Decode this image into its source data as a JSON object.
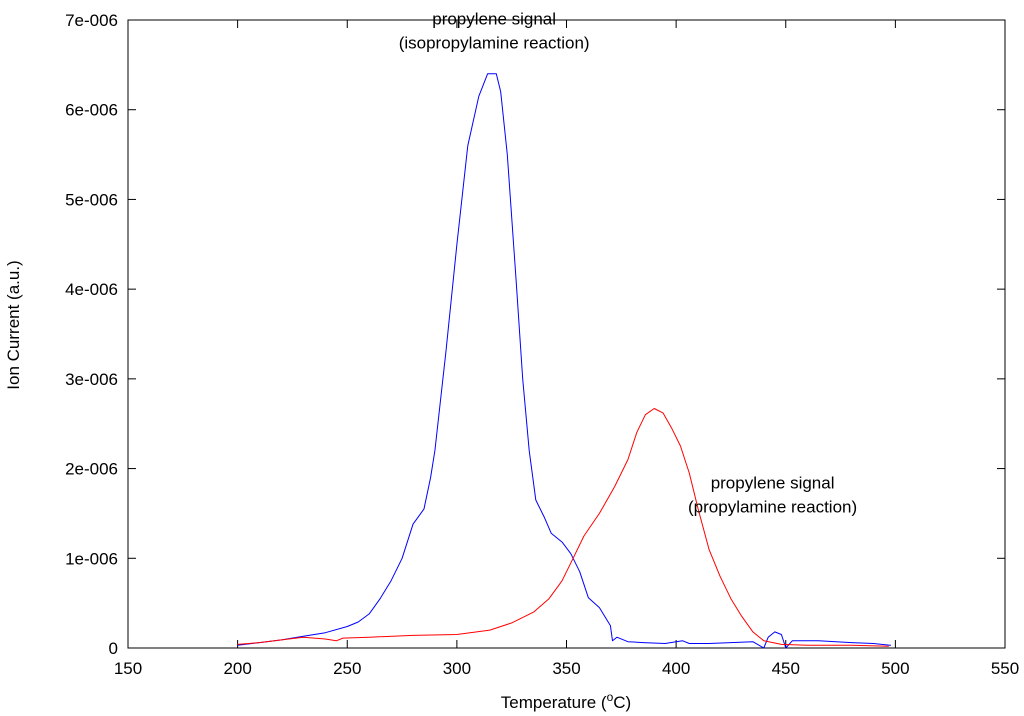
{
  "chart_data": {
    "type": "line",
    "xlabel_prefix": "Temperature (",
    "xlabel_sup": "o",
    "xlabel_suffix": "C)",
    "ylabel": "Ion Current (a.u.)",
    "xlim": [
      150,
      550
    ],
    "ylim": [
      0,
      7e-06
    ],
    "x_ticks": [
      {
        "value": 150,
        "label": "150"
      },
      {
        "value": 200,
        "label": "200"
      },
      {
        "value": 250,
        "label": "250"
      },
      {
        "value": 300,
        "label": "300"
      },
      {
        "value": 350,
        "label": "350"
      },
      {
        "value": 400,
        "label": "400"
      },
      {
        "value": 450,
        "label": "450"
      },
      {
        "value": 500,
        "label": "500"
      },
      {
        "value": 550,
        "label": "550"
      }
    ],
    "y_ticks": [
      {
        "value": 0,
        "label": "0"
      },
      {
        "value": 1e-06,
        "label": "1e-006"
      },
      {
        "value": 2e-06,
        "label": "2e-006"
      },
      {
        "value": 3e-06,
        "label": "3e-006"
      },
      {
        "value": 4e-06,
        "label": "4e-006"
      },
      {
        "value": 5e-06,
        "label": "5e-006"
      },
      {
        "value": 6e-06,
        "label": "6e-006"
      },
      {
        "value": 7e-06,
        "label": "7e-006"
      }
    ],
    "grid": false,
    "series": [
      {
        "color": "#0000ff",
        "points": [
          [
            200,
            3e-08
          ],
          [
            210,
            6e-08
          ],
          [
            220,
            9e-08
          ],
          [
            230,
            1.3e-07
          ],
          [
            240,
            1.7e-07
          ],
          [
            250,
            2.4e-07
          ],
          [
            255,
            2.9e-07
          ],
          [
            260,
            3.8e-07
          ],
          [
            265,
            5.5e-07
          ],
          [
            270,
            7.5e-07
          ],
          [
            275,
            1e-06
          ],
          [
            280,
            1.38e-06
          ],
          [
            285,
            1.55e-06
          ],
          [
            288,
            1.9e-06
          ],
          [
            290,
            2.2e-06
          ],
          [
            295,
            3.3e-06
          ],
          [
            300,
            4.5e-06
          ],
          [
            305,
            5.6e-06
          ],
          [
            310,
            6.15e-06
          ],
          [
            314,
            6.4e-06
          ],
          [
            318,
            6.4e-06
          ],
          [
            320,
            6.2e-06
          ],
          [
            323,
            5.5e-06
          ],
          [
            327,
            4.1e-06
          ],
          [
            330,
            3e-06
          ],
          [
            333,
            2.2e-06
          ],
          [
            336,
            1.65e-06
          ],
          [
            340,
            1.45e-06
          ],
          [
            343,
            1.28e-06
          ],
          [
            348,
            1.18e-06
          ],
          [
            352,
            1.05e-06
          ],
          [
            356,
            8.5e-07
          ],
          [
            360,
            5.6e-07
          ],
          [
            365,
            4.5e-07
          ],
          [
            370,
            2.5e-07
          ],
          [
            371,
            8e-08
          ],
          [
            373,
            1.2e-07
          ],
          [
            378,
            7e-08
          ],
          [
            385,
            6e-08
          ],
          [
            395,
            5e-08
          ],
          [
            400,
            7e-08
          ],
          [
            403,
            8e-08
          ],
          [
            406,
            5e-08
          ],
          [
            415,
            5e-08
          ],
          [
            425,
            6e-08
          ],
          [
            435,
            7e-08
          ],
          [
            440,
            0.0
          ],
          [
            442,
            1.2e-07
          ],
          [
            445,
            1.8e-07
          ],
          [
            448,
            1.5e-07
          ],
          [
            450,
            0.0
          ],
          [
            453,
            8e-08
          ],
          [
            465,
            8e-08
          ],
          [
            480,
            6e-08
          ],
          [
            490,
            5e-08
          ],
          [
            498,
            3e-08
          ]
        ]
      },
      {
        "color": "#ff0000",
        "points": [
          [
            200,
            4e-08
          ],
          [
            210,
            6e-08
          ],
          [
            220,
            9e-08
          ],
          [
            230,
            1.2e-07
          ],
          [
            240,
            1e-07
          ],
          [
            245,
            8e-08
          ],
          [
            248,
            1.1e-07
          ],
          [
            260,
            1.2e-07
          ],
          [
            280,
            1.4e-07
          ],
          [
            300,
            1.5e-07
          ],
          [
            315,
            2e-07
          ],
          [
            325,
            2.8e-07
          ],
          [
            335,
            4e-07
          ],
          [
            342,
            5.5e-07
          ],
          [
            348,
            7.5e-07
          ],
          [
            353,
            1e-06
          ],
          [
            358,
            1.25e-06
          ],
          [
            365,
            1.5e-06
          ],
          [
            372,
            1.8e-06
          ],
          [
            378,
            2.1e-06
          ],
          [
            382,
            2.4e-06
          ],
          [
            386,
            2.6e-06
          ],
          [
            390,
            2.67e-06
          ],
          [
            394,
            2.62e-06
          ],
          [
            398,
            2.45e-06
          ],
          [
            402,
            2.25e-06
          ],
          [
            406,
            1.95e-06
          ],
          [
            410,
            1.55e-06
          ],
          [
            415,
            1.1e-06
          ],
          [
            420,
            8e-07
          ],
          [
            425,
            5.5e-07
          ],
          [
            430,
            3.5e-07
          ],
          [
            435,
            1.8e-07
          ],
          [
            440,
            8e-08
          ],
          [
            448,
            4e-08
          ],
          [
            460,
            3e-08
          ],
          [
            480,
            3e-08
          ],
          [
            497,
            2e-08
          ]
        ]
      }
    ],
    "annotations": [
      {
        "line1": "propylene signal",
        "line2": "(isopropylamine reaction)",
        "x": 317,
        "y": 6.95e-06
      },
      {
        "line1": "propylene signal",
        "line2": "(propylamine reaction)",
        "x": 444,
        "y": 1.78e-06
      }
    ]
  }
}
